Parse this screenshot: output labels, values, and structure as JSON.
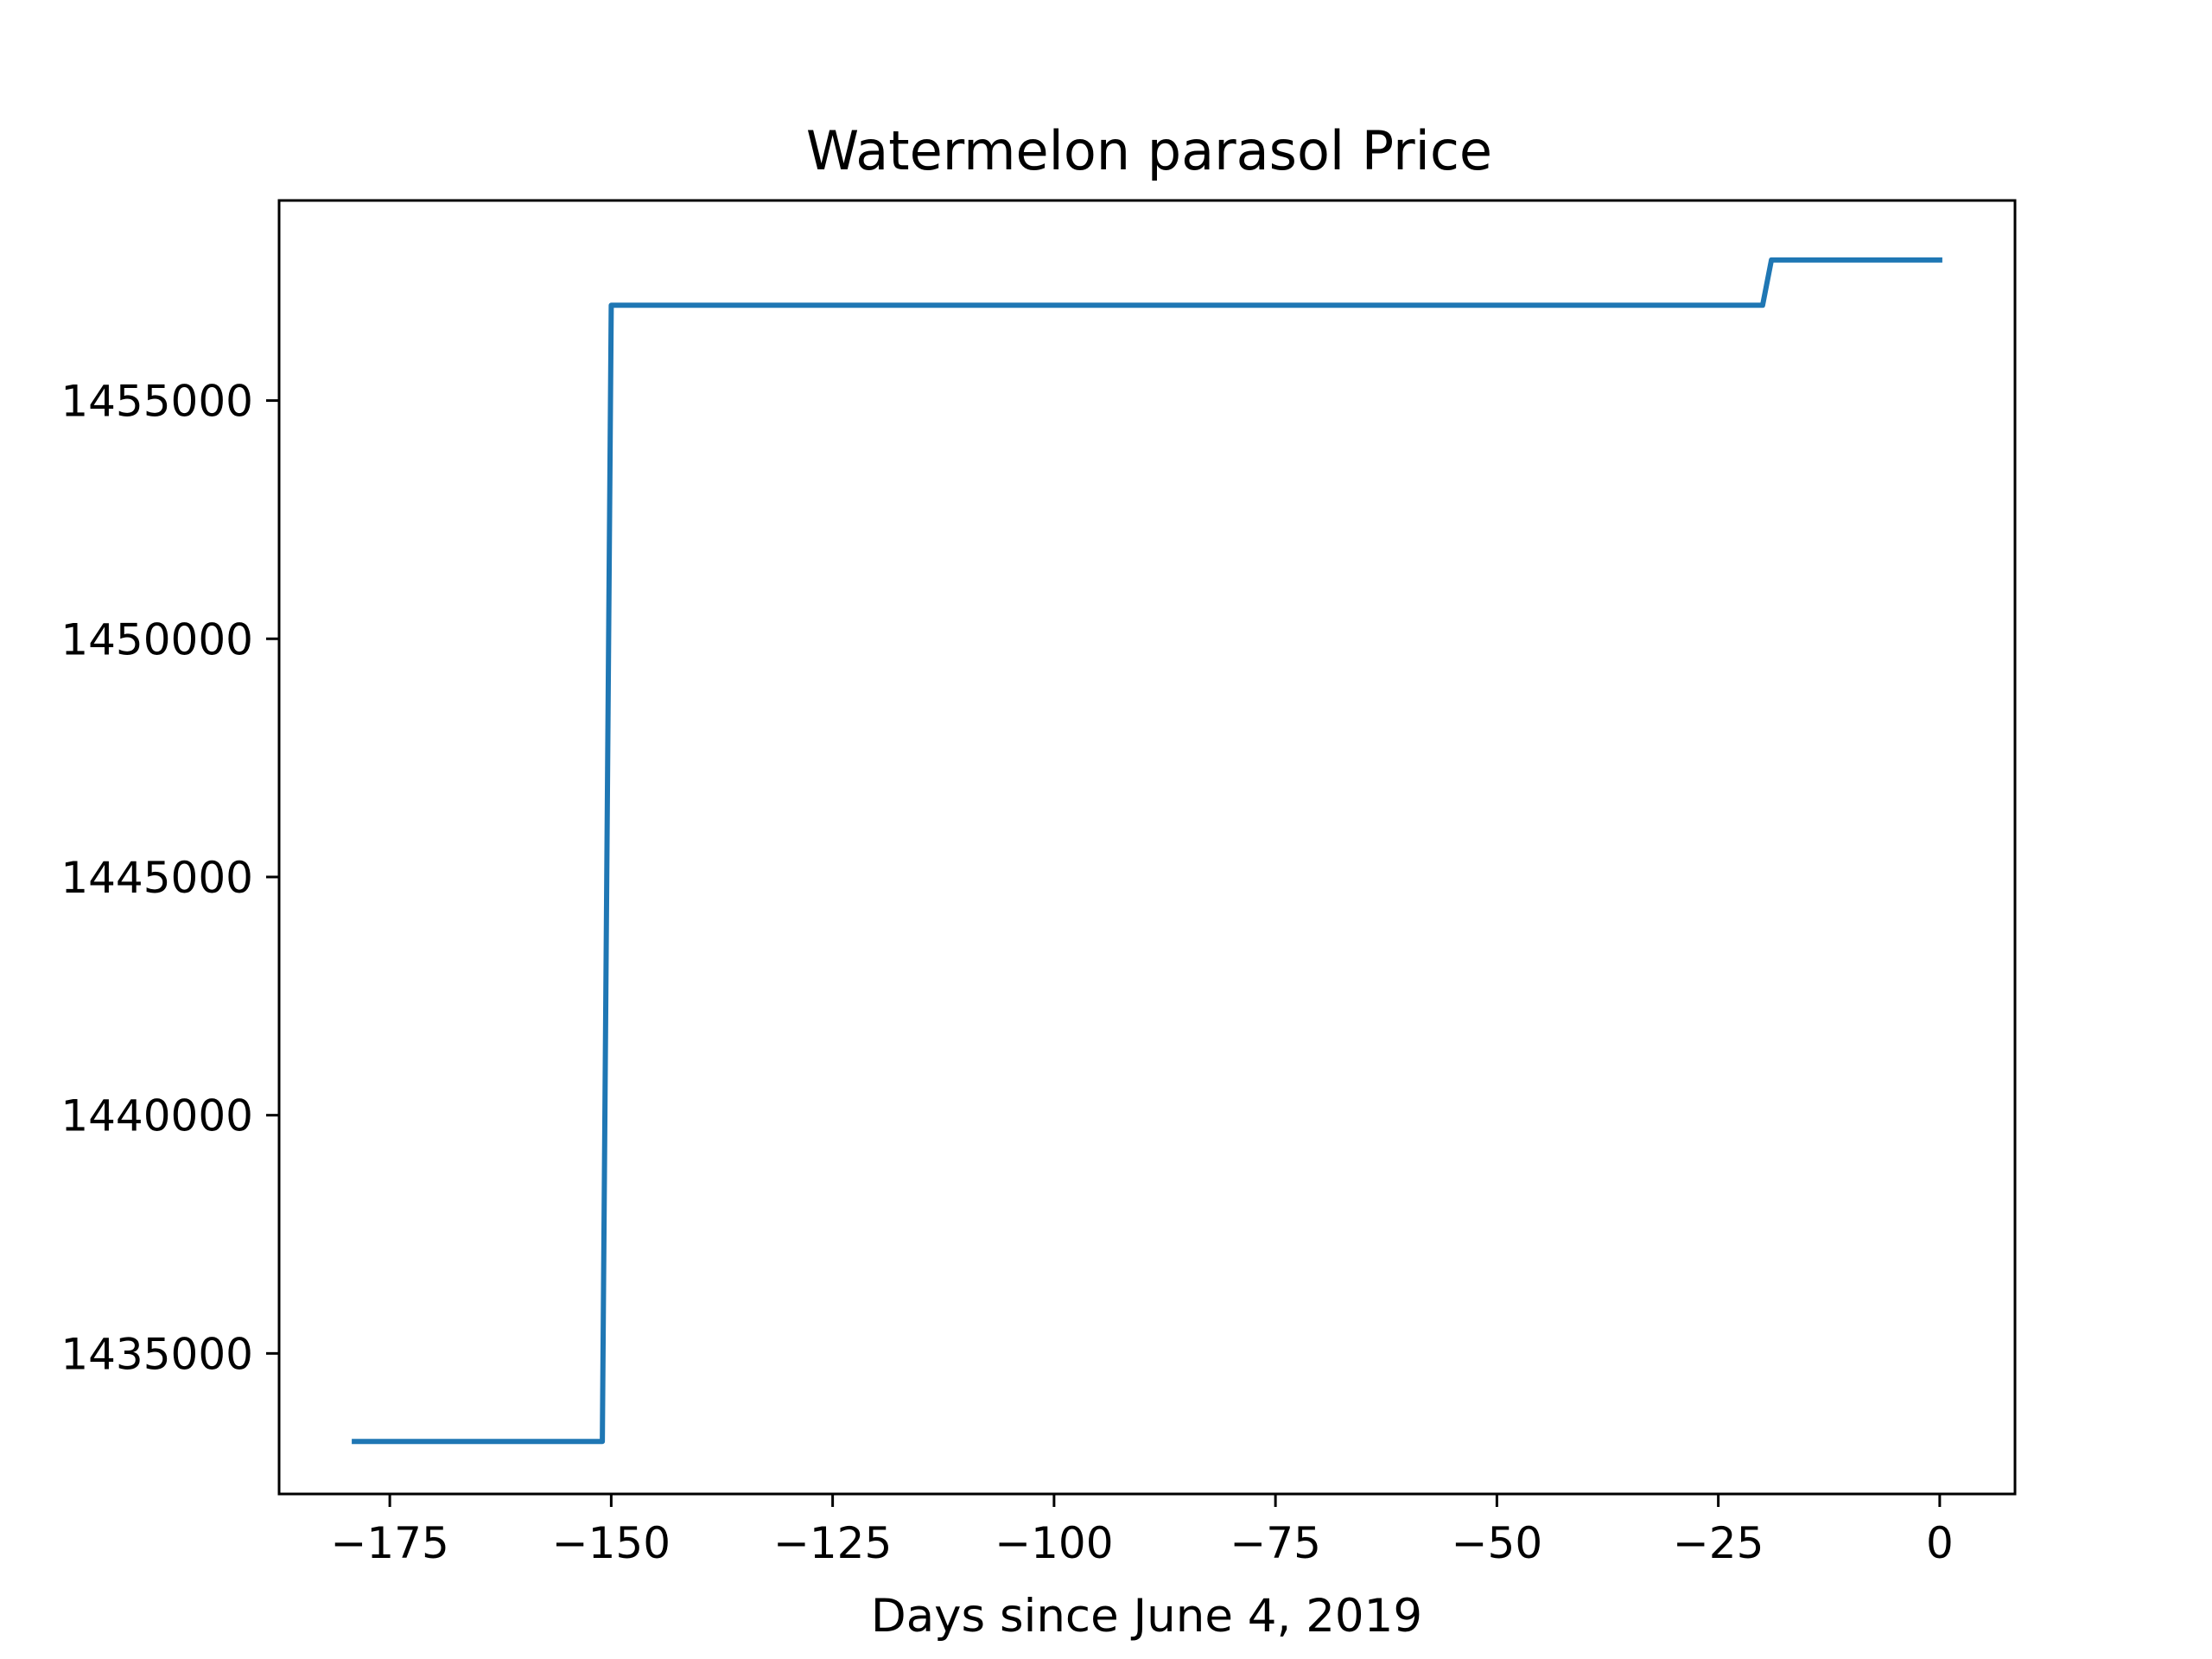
{
  "chart_data": {
    "type": "line",
    "title": "Watermelon parasol Price",
    "xlabel": "Days since June 4, 2019",
    "ylabel": "",
    "xlim": [
      -187.5,
      8.5
    ],
    "ylim": [
      1432050,
      1459200
    ],
    "xticks": [
      -175,
      -150,
      -125,
      -100,
      -75,
      -50,
      -25,
      0
    ],
    "xtick_labels": [
      "−175",
      "−150",
      "−125",
      "−100",
      "−75",
      "−50",
      "−25",
      "0"
    ],
    "yticks": [
      1435000,
      1440000,
      1445000,
      1450000,
      1455000
    ],
    "ytick_labels": [
      "1435000",
      "1440000",
      "1445000",
      "1450000",
      "1455000"
    ],
    "grid": false,
    "legend": false,
    "series": [
      {
        "color": "#1f77b4",
        "x": [
          -179,
          -151,
          -150,
          -20,
          -19,
          0
        ],
        "y": [
          1433150,
          1433150,
          1457000,
          1457000,
          1457950,
          1457950
        ]
      }
    ]
  }
}
